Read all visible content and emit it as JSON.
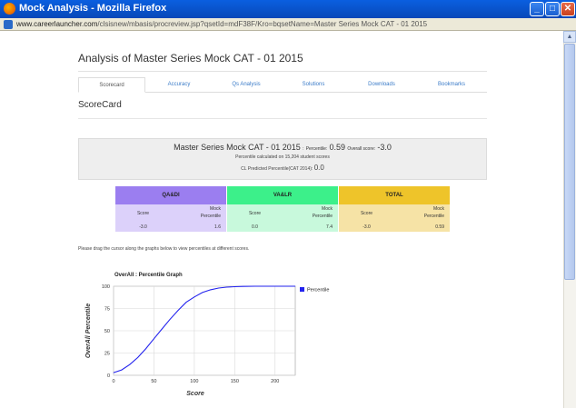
{
  "window": {
    "title": "Mock Analysis - Mozilla Firefox",
    "url_host": "www.careerlauncher.com",
    "url_path": "/clsisnew/mbasis/procreview.jsp?qsetId=mdF38F/Kro=bqsetName=Master Series Mock CAT - 01 2015",
    "minimize_glyph": "_",
    "maximize_glyph": "□",
    "close_glyph": "✕"
  },
  "page": {
    "title": "Analysis of Master Series Mock CAT - 01 2015",
    "section_title": "ScoreCard",
    "hint": "Please drag the cursor along the graphs below to view percentiles at different scores."
  },
  "tabs": [
    {
      "label": "Scorecard",
      "active": true
    },
    {
      "label": "Accuracy",
      "active": false
    },
    {
      "label": "Qs Analysis",
      "active": false
    },
    {
      "label": "Solutions",
      "active": false
    },
    {
      "label": "Downloads",
      "active": false
    },
    {
      "label": "Bookmarks",
      "active": false
    }
  ],
  "summary": {
    "test_name": "Master Series Mock CAT - 01 2015",
    "separator": ":",
    "percentile_label": "Percentile:",
    "percentile_value": "0.59",
    "overall_label": "Overall score:",
    "overall_value": "-3.0",
    "calc_note": "Percentile calculated on 15,204 student scores",
    "predicted_label": "CL Predicted Percentile(CAT 2014):",
    "predicted_value": "0.0"
  },
  "score_table": {
    "sections": [
      {
        "name": "QA&DI",
        "score_label": "Score",
        "pct_label_1": "Mock",
        "pct_label_2": "Percentile",
        "score": "-3.0",
        "percentile": "1.6",
        "head_color": "#9b7ef0",
        "body_color": "#dcd1fa"
      },
      {
        "name": "VA&LR",
        "score_label": "Score",
        "pct_label_1": "Mock",
        "pct_label_2": "Percentile",
        "score": "0.0",
        "percentile": "7.4",
        "head_color": "#3cf08a",
        "body_color": "#c8f9dc"
      },
      {
        "name": "TOTAL",
        "score_label": "Score",
        "pct_label_1": "Mock",
        "pct_label_2": "Percentile",
        "score": "-3.0",
        "percentile": "0.59",
        "head_color": "#eec42a",
        "body_color": "#f6e3a6"
      }
    ]
  },
  "chart_data": {
    "type": "line",
    "title": "OverAll : Percentile Graph",
    "xlabel": "Score",
    "ylabel": "OverAll Percentile",
    "xlim": [
      0,
      225
    ],
    "ylim": [
      0,
      100
    ],
    "xticks": [
      0,
      50,
      100,
      150,
      200
    ],
    "yticks": [
      0,
      25,
      50,
      75,
      100
    ],
    "grid": true,
    "legend": "right",
    "series": [
      {
        "name": "Percentile",
        "color": "#2222ee",
        "x": [
          0,
          10,
          20,
          30,
          40,
          50,
          60,
          70,
          80,
          90,
          100,
          110,
          120,
          130,
          140,
          150,
          160,
          175,
          200,
          225
        ],
        "y": [
          3,
          6,
          12,
          20,
          30,
          41,
          52,
          63,
          73,
          82,
          88,
          93,
          96,
          98,
          99,
          99.5,
          99.8,
          100,
          100,
          100
        ]
      }
    ]
  }
}
